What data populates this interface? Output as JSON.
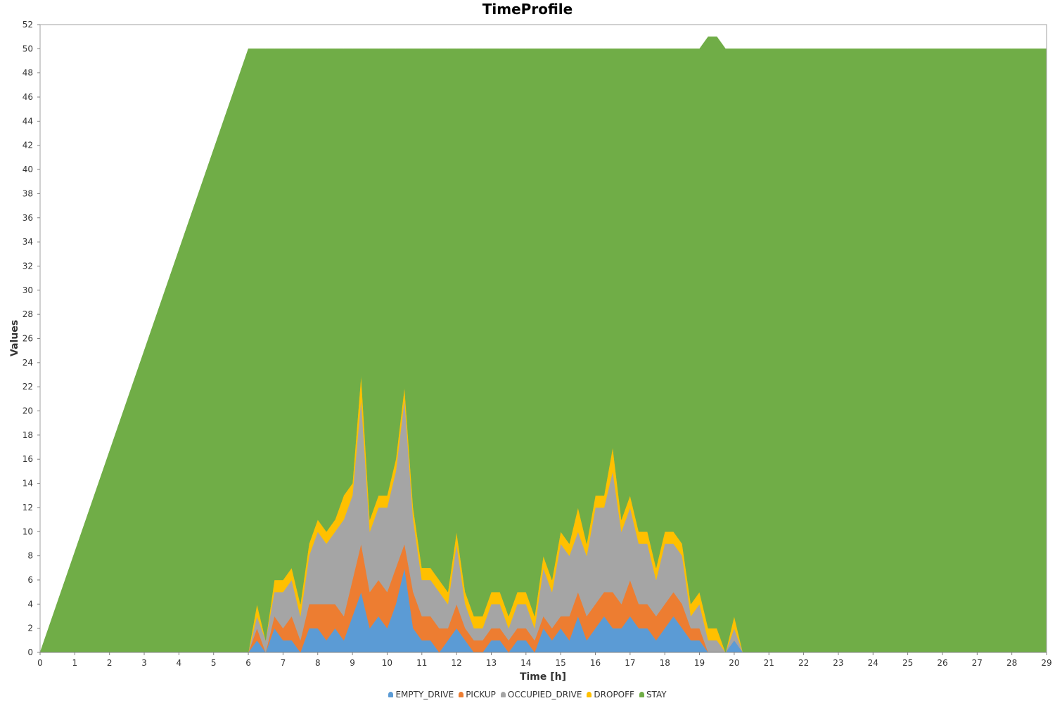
{
  "chart_data": {
    "type": "area",
    "stacked": true,
    "title": "TimeProfile",
    "xlabel": "Time [h]",
    "ylabel": "Values",
    "xlim": [
      0,
      29
    ],
    "ylim": [
      0,
      52
    ],
    "xticks": [
      0,
      1,
      2,
      3,
      4,
      5,
      6,
      7,
      8,
      9,
      10,
      11,
      12,
      13,
      14,
      15,
      16,
      17,
      18,
      19,
      20,
      21,
      22,
      23,
      24,
      25,
      26,
      27,
      28,
      29
    ],
    "yticks": [
      0,
      2,
      4,
      6,
      8,
      10,
      12,
      14,
      16,
      18,
      20,
      22,
      24,
      26,
      28,
      30,
      32,
      34,
      36,
      38,
      40,
      42,
      44,
      46,
      48,
      50,
      52
    ],
    "legend_position": "bottom",
    "x": [
      0,
      6,
      6.25,
      6.5,
      6.75,
      7,
      7.25,
      7.5,
      7.75,
      8,
      8.25,
      8.5,
      8.75,
      9,
      9.25,
      9.5,
      9.75,
      10,
      10.25,
      10.5,
      10.75,
      11,
      11.25,
      11.5,
      11.75,
      12,
      12.25,
      12.5,
      12.75,
      13,
      13.25,
      13.5,
      13.75,
      14,
      14.25,
      14.5,
      14.75,
      15,
      15.25,
      15.5,
      15.75,
      16,
      16.25,
      16.5,
      16.75,
      17,
      17.25,
      17.5,
      17.75,
      18,
      18.25,
      18.5,
      18.75,
      19,
      19.25,
      19.5,
      19.75,
      20,
      20.25,
      20.5,
      21,
      22,
      23,
      24,
      25,
      26,
      27,
      28,
      29
    ],
    "series": [
      {
        "name": "EMPTY_DRIVE",
        "color": "#5b9bd5",
        "values": [
          0,
          0,
          1,
          0,
          2,
          1,
          1,
          0,
          2,
          2,
          1,
          2,
          1,
          3,
          5,
          2,
          3,
          2,
          4,
          7,
          2,
          1,
          1,
          0,
          1,
          2,
          1,
          0,
          0,
          1,
          1,
          0,
          1,
          1,
          0,
          2,
          1,
          2,
          1,
          3,
          1,
          2,
          3,
          2,
          2,
          3,
          2,
          2,
          1,
          2,
          3,
          2,
          1,
          1,
          0,
          0,
          0,
          1,
          0,
          0,
          0,
          0,
          0,
          0,
          0,
          0,
          0,
          0,
          0
        ]
      },
      {
        "name": "PICKUP",
        "color": "#ed7d31",
        "values": [
          0,
          0,
          1,
          0,
          1,
          1,
          2,
          1,
          2,
          2,
          3,
          2,
          2,
          3,
          4,
          3,
          3,
          3,
          3,
          2,
          3,
          2,
          2,
          2,
          1,
          2,
          1,
          1,
          1,
          1,
          1,
          1,
          1,
          1,
          1,
          1,
          1,
          1,
          2,
          2,
          2,
          2,
          2,
          3,
          2,
          3,
          2,
          2,
          2,
          2,
          2,
          2,
          1,
          1,
          0,
          0,
          0,
          0,
          0,
          0,
          0,
          0,
          0,
          0,
          0,
          0,
          0,
          0,
          0
        ]
      },
      {
        "name": "OCCUPIED_DRIVE",
        "color": "#a5a5a5",
        "values": [
          0,
          0,
          1,
          1,
          2,
          3,
          3,
          2,
          4,
          6,
          5,
          6,
          8,
          7,
          12,
          5,
          6,
          7,
          8,
          12,
          6,
          3,
          3,
          3,
          2,
          5,
          2,
          1,
          1,
          2,
          2,
          1,
          2,
          2,
          1,
          4,
          3,
          6,
          5,
          5,
          5,
          8,
          7,
          10,
          6,
          6,
          5,
          5,
          3,
          5,
          4,
          4,
          1,
          2,
          1,
          1,
          0,
          1,
          0,
          0,
          0,
          0,
          0,
          0,
          0,
          0,
          0,
          0,
          0
        ]
      },
      {
        "name": "DROPOFF",
        "color": "#ffc000",
        "values": [
          0,
          0,
          1,
          0,
          1,
          1,
          1,
          1,
          1,
          1,
          1,
          1,
          2,
          1,
          2,
          1,
          1,
          1,
          1,
          1,
          1,
          1,
          1,
          1,
          1,
          1,
          1,
          1,
          1,
          1,
          1,
          1,
          1,
          1,
          1,
          1,
          1,
          1,
          1,
          2,
          1,
          1,
          1,
          2,
          1,
          1,
          1,
          1,
          1,
          1,
          1,
          1,
          1,
          1,
          1,
          1,
          0,
          1,
          0,
          0,
          0,
          0,
          0,
          0,
          0,
          0,
          0,
          0,
          0
        ]
      },
      {
        "name": "STAY",
        "color": "#70ad47",
        "values": [
          0,
          50,
          46,
          49,
          44,
          44,
          43,
          46,
          41,
          39,
          40,
          39,
          37,
          36,
          27,
          39,
          37,
          37,
          34,
          28,
          38,
          43,
          43,
          44,
          45,
          40,
          45,
          47,
          47,
          45,
          45,
          47,
          45,
          45,
          47,
          42,
          44,
          40,
          41,
          38,
          41,
          37,
          37,
          33,
          39,
          37,
          40,
          40,
          43,
          40,
          40,
          41,
          46,
          45,
          49,
          49,
          50,
          47,
          50,
          50,
          50,
          50,
          50,
          50,
          50,
          50,
          50,
          50,
          50
        ]
      }
    ]
  }
}
